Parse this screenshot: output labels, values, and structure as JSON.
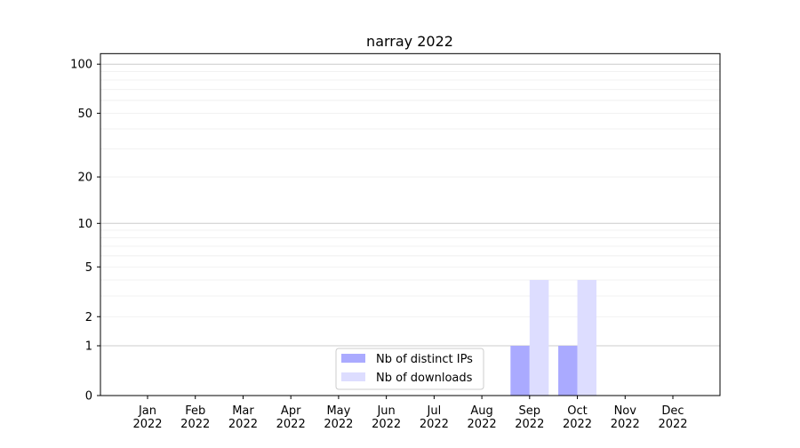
{
  "chart_data": {
    "type": "bar",
    "title": "narray 2022",
    "xlabel": "",
    "ylabel": "",
    "yscale": "log(1+y)",
    "ylim": [
      0,
      116
    ],
    "yticks": [
      0,
      1,
      2,
      5,
      10,
      20,
      50,
      100
    ],
    "ytick_labels": [
      "0",
      "1",
      "2",
      "5",
      "10",
      "20",
      "50",
      "100"
    ],
    "grid": true,
    "categories": [
      "Jan\n2022",
      "Feb\n2022",
      "Mar\n2022",
      "Apr\n2022",
      "May\n2022",
      "Jun\n2022",
      "Jul\n2022",
      "Aug\n2022",
      "Sep\n2022",
      "Oct\n2022",
      "Nov\n2022",
      "Dec\n2022"
    ],
    "series": [
      {
        "name": "Nb of distinct IPs",
        "color": "#aaaaff",
        "values": [
          0,
          0,
          0,
          0,
          0,
          0,
          0,
          0,
          1,
          1,
          0,
          0
        ]
      },
      {
        "name": "Nb of downloads",
        "color": "#ddddff",
        "values": [
          0,
          0,
          0,
          0,
          0,
          0,
          0,
          0,
          4,
          4,
          0,
          0
        ]
      }
    ],
    "legend_position": "bottom-center"
  }
}
